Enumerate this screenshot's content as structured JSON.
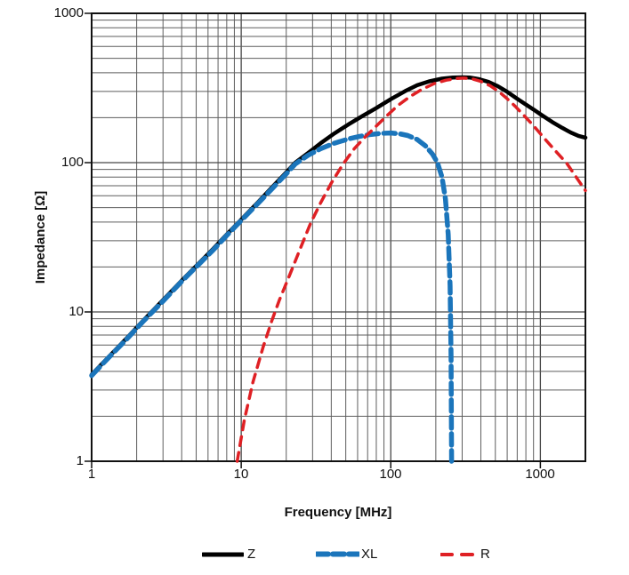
{
  "axes": {
    "y": {
      "title": "Impedance [Ω]",
      "ticks": [
        "1000",
        "100",
        "10",
        "1"
      ]
    },
    "x": {
      "title": "Frequency [MHz]",
      "ticks": [
        "1",
        "10",
        "100",
        "1000"
      ]
    }
  },
  "legend": [
    {
      "label": "Z"
    },
    {
      "label": "XL"
    },
    {
      "label": "R"
    }
  ],
  "colors": {
    "z": "#000000",
    "xl": "#1b75bb",
    "r": "#df2024",
    "grid_minor": "#5e5e5e",
    "grid_major": "#474747",
    "axis": "#111111"
  },
  "chart_data": {
    "type": "line",
    "title": "",
    "xlabel": "Frequency [MHz]",
    "ylabel": "Impedance [Ω]",
    "xscale": "log",
    "yscale": "log",
    "xlim": [
      1,
      2000
    ],
    "ylim": [
      1,
      1000
    ],
    "grid": "log major + minor gridlines on both axes",
    "legend_position": "bottom",
    "series": [
      {
        "name": "Z",
        "color": "#000000",
        "style": "solid",
        "width": 4.5,
        "dash": null,
        "legend_dash": null,
        "points": [
          [
            1,
            3.8
          ],
          [
            1.3,
            5.0
          ],
          [
            1.7,
            6.6
          ],
          [
            2.2,
            8.7
          ],
          [
            3,
            12
          ],
          [
            4,
            16.2
          ],
          [
            5,
            20.3
          ],
          [
            6.5,
            26.5
          ],
          [
            8,
            33
          ],
          [
            10,
            41.5
          ],
          [
            13,
            54.5
          ],
          [
            16,
            68
          ],
          [
            20,
            86
          ],
          [
            23,
            100
          ],
          [
            28,
            116
          ],
          [
            34,
            135
          ],
          [
            42,
            157
          ],
          [
            52,
            180
          ],
          [
            65,
            206
          ],
          [
            80,
            232
          ],
          [
            100,
            266
          ],
          [
            125,
            302
          ],
          [
            150,
            330
          ],
          [
            180,
            350
          ],
          [
            220,
            365
          ],
          [
            260,
            371
          ],
          [
            300,
            373
          ],
          [
            340,
            371
          ],
          [
            390,
            362
          ],
          [
            450,
            347
          ],
          [
            520,
            325
          ],
          [
            600,
            298
          ],
          [
            700,
            268
          ],
          [
            800,
            245
          ],
          [
            900,
            227
          ],
          [
            1000,
            211
          ],
          [
            1200,
            187
          ],
          [
            1400,
            171
          ],
          [
            1600,
            159
          ],
          [
            1800,
            151
          ],
          [
            2000,
            147
          ]
        ]
      },
      {
        "name": "XL",
        "color": "#1b75bb",
        "style": "dashed",
        "width": 5.5,
        "dash": [
          13,
          6
        ],
        "legend_dash": [
          13,
          5
        ],
        "points": [
          [
            1,
            3.75
          ],
          [
            1.3,
            4.95
          ],
          [
            1.7,
            6.5
          ],
          [
            2.2,
            8.6
          ],
          [
            3,
            11.8
          ],
          [
            4,
            16
          ],
          [
            5,
            20
          ],
          [
            6.5,
            26
          ],
          [
            8,
            32.5
          ],
          [
            10,
            41
          ],
          [
            13,
            53.5
          ],
          [
            16,
            66.5
          ],
          [
            20,
            84
          ],
          [
            23,
            98
          ],
          [
            28,
            112
          ],
          [
            34,
            124
          ],
          [
            42,
            135
          ],
          [
            52,
            144
          ],
          [
            62,
            150
          ],
          [
            72,
            154
          ],
          [
            85,
            157
          ],
          [
            100,
            158
          ],
          [
            115,
            156
          ],
          [
            130,
            152
          ],
          [
            150,
            143
          ],
          [
            170,
            130
          ],
          [
            190,
            114
          ],
          [
            205,
            100
          ],
          [
            220,
            80
          ],
          [
            232,
            57
          ],
          [
            242,
            33
          ],
          [
            249,
            15
          ],
          [
            253,
            5
          ],
          [
            255,
            1
          ]
        ]
      },
      {
        "name": "R",
        "color": "#df2024",
        "style": "dashed",
        "width": 3.5,
        "dash": [
          10,
          8
        ],
        "legend_dash": [
          12,
          11
        ],
        "points": [
          [
            9.4,
            1
          ],
          [
            10.5,
            1.9
          ],
          [
            12,
            3.4
          ],
          [
            14,
            5.8
          ],
          [
            16,
            8.7
          ],
          [
            18,
            12
          ],
          [
            21,
            17.5
          ],
          [
            25,
            27
          ],
          [
            29,
            39
          ],
          [
            34,
            54
          ],
          [
            40,
            73
          ],
          [
            48,
            98
          ],
          [
            57,
            124
          ],
          [
            68,
            150
          ],
          [
            80,
            176
          ],
          [
            95,
            208
          ],
          [
            112,
            242
          ],
          [
            135,
            278
          ],
          [
            160,
            308
          ],
          [
            195,
            338
          ],
          [
            235,
            357
          ],
          [
            275,
            366
          ],
          [
            310,
            368
          ],
          [
            350,
            364
          ],
          [
            400,
            350
          ],
          [
            460,
            328
          ],
          [
            530,
            298
          ],
          [
            600,
            268
          ],
          [
            680,
            238
          ],
          [
            760,
            212
          ],
          [
            850,
            188
          ],
          [
            950,
            166
          ],
          [
            1100,
            140
          ],
          [
            1300,
            116
          ],
          [
            1500,
            99
          ],
          [
            1750,
            79
          ],
          [
            2000,
            65
          ]
        ]
      }
    ]
  }
}
